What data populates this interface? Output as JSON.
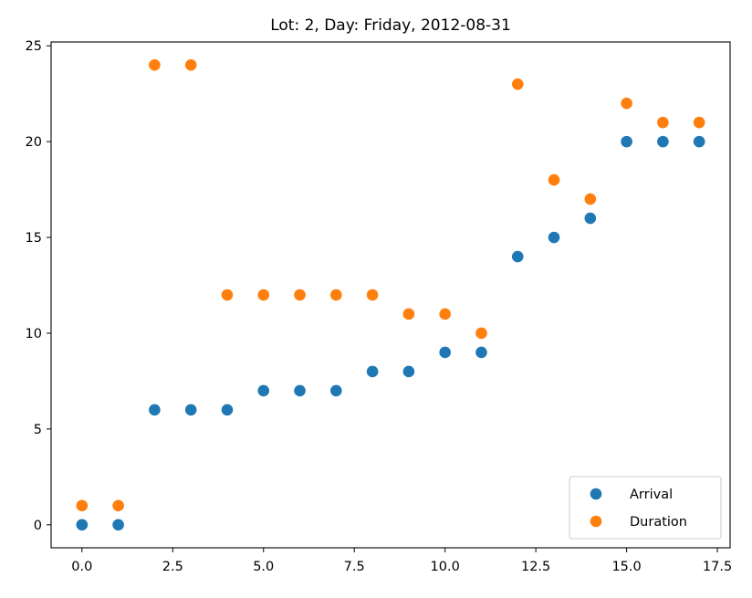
{
  "chart_data": {
    "type": "scatter",
    "title": "Lot: 2, Day: Friday, 2012-08-31",
    "xlabel": "",
    "ylabel": "",
    "xlim": [
      -0.85,
      17.85
    ],
    "ylim": [
      -1.2,
      25.2
    ],
    "xticks": [
      0.0,
      2.5,
      5.0,
      7.5,
      10.0,
      12.5,
      15.0,
      17.5
    ],
    "xtick_labels": [
      "0.0",
      "2.5",
      "5.0",
      "7.5",
      "10.0",
      "12.5",
      "15.0",
      "17.5"
    ],
    "yticks": [
      0,
      5,
      10,
      15,
      20,
      25
    ],
    "ytick_labels": [
      "0",
      "5",
      "10",
      "15",
      "20",
      "25"
    ],
    "grid": false,
    "legend_position": "lower-right",
    "x": [
      0,
      1,
      2,
      3,
      4,
      5,
      6,
      7,
      8,
      9,
      10,
      11,
      12,
      13,
      14,
      15,
      16,
      17
    ],
    "series": [
      {
        "name": "Arrival",
        "color": "#1f77b4",
        "values": [
          0,
          0,
          6,
          6,
          6,
          7,
          7,
          7,
          8,
          8,
          9,
          9,
          14,
          15,
          16,
          20,
          20,
          20
        ]
      },
      {
        "name": "Duration",
        "color": "#ff7f0e",
        "values": [
          1,
          1,
          24,
          24,
          12,
          12,
          12,
          12,
          12,
          11,
          11,
          10,
          23,
          18,
          17,
          22,
          21,
          21
        ]
      }
    ]
  }
}
